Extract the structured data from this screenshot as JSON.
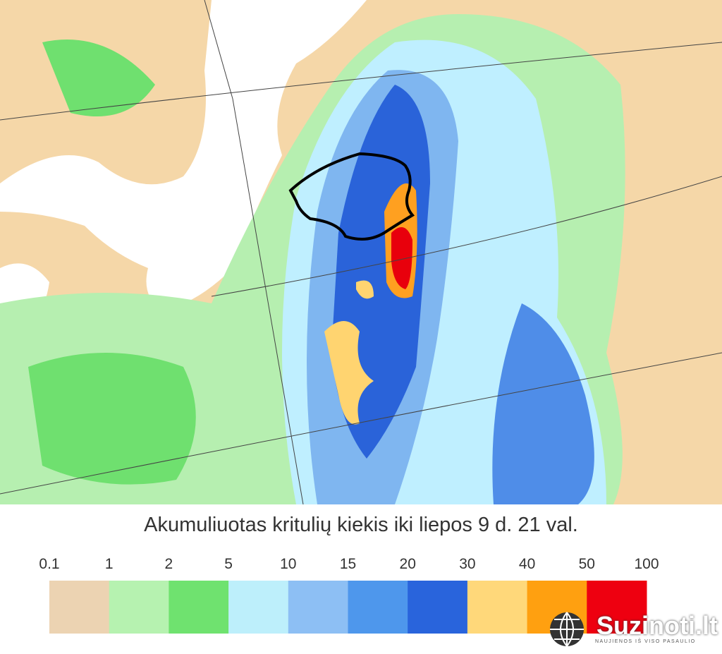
{
  "title": "Akumuliuotas kritulių kiekis iki liepos 9 d. 21 val.",
  "legend": {
    "thresholds": [
      "0.1",
      "1",
      "2",
      "5",
      "10",
      "15",
      "20",
      "30",
      "40",
      "50",
      "100"
    ],
    "colors": [
      "#ecd3b2",
      "#b6f2b0",
      "#6fe26f",
      "#bdeffb",
      "#8dbff4",
      "#4e97ec",
      "#2964dc",
      "#ffd87a",
      "#ffa010",
      "#ee0010"
    ]
  },
  "watermark": {
    "name": "Suzinoti.lt",
    "tagline": "NAUJIENOS IŠ VISO PASAULIO"
  }
}
